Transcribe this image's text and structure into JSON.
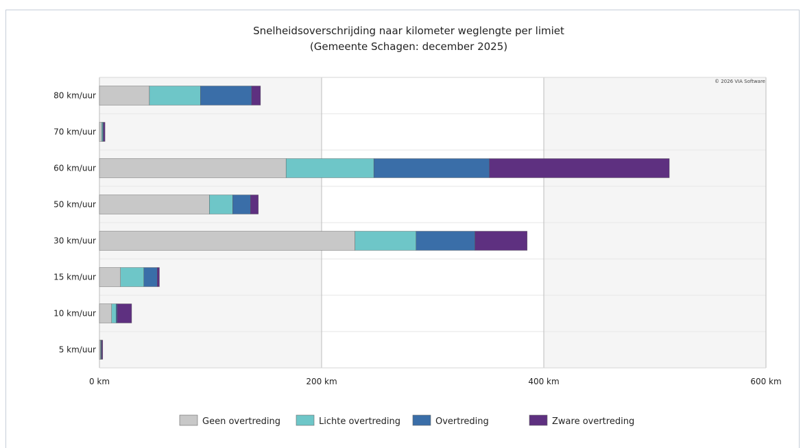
{
  "chart_data": {
    "type": "bar",
    "orientation": "horizontal",
    "stacked": true,
    "title": "Snelheidsoverschrijding naar kilometer weglengte per limiet",
    "subtitle": "(Gemeente Schagen: december 2025)",
    "credit": "© 2026 VIA Software",
    "categories": [
      "80 km/uur",
      "70 km/uur",
      "60 km/uur",
      "50 km/uur",
      "30 km/uur",
      "15 km/uur",
      "10 km/uur",
      "5 km/uur"
    ],
    "series": [
      {
        "name": "Geen overtreding",
        "color": "#c8c8c8",
        "values": [
          45,
          2,
          168,
          99,
          230,
          19,
          11,
          1
        ]
      },
      {
        "name": "Lichte overtreding",
        "color": "#6ec6c8",
        "values": [
          46,
          1,
          79,
          21,
          55,
          21,
          4,
          0.5
        ]
      },
      {
        "name": "Overtreding",
        "color": "#3a6ea8",
        "values": [
          46,
          0.5,
          104,
          16,
          53,
          12,
          1,
          0.5
        ]
      },
      {
        "name": "Zware overtreding",
        "color": "#5e3080",
        "values": [
          8,
          1.5,
          162,
          7,
          47,
          2,
          13,
          1
        ]
      }
    ],
    "x_ticks": [
      "0 km",
      "200 km",
      "400 km",
      "600 km"
    ],
    "xlim": [
      0,
      600
    ],
    "legend_position": "bottom"
  }
}
